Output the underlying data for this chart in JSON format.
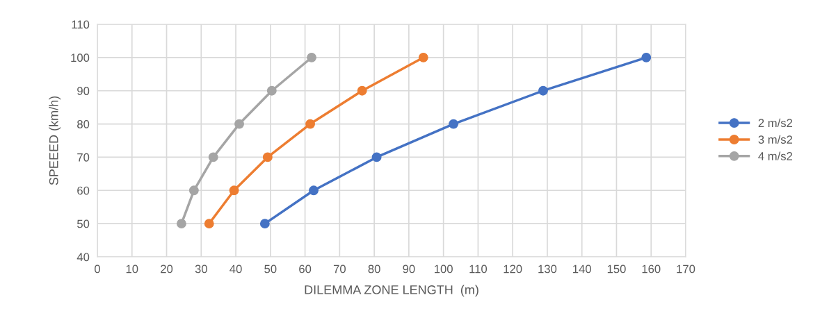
{
  "chart_data": {
    "type": "line",
    "xlabel": "DILEMMA ZONE LENGTH  (m)",
    "ylabel": "SPEEED (km/h)",
    "xlim": [
      0,
      170
    ],
    "xticks": [
      0,
      10,
      20,
      30,
      40,
      50,
      60,
      70,
      80,
      90,
      100,
      110,
      120,
      130,
      140,
      150,
      160,
      170
    ],
    "ylim": [
      40,
      110
    ],
    "yticks": [
      40,
      50,
      60,
      70,
      80,
      90,
      100,
      110
    ],
    "grid": true,
    "legend": "right",
    "marker": "circle",
    "line_style": "solid",
    "series": [
      {
        "name": "2 m/s2",
        "color": "#4472c4",
        "x": [
          48.4,
          62.5,
          80.7,
          102.9,
          128.8,
          158.6
        ],
        "values": [
          50,
          60,
          70,
          80,
          90,
          100
        ]
      },
      {
        "name": "3 m/s2",
        "color": "#ed7d31",
        "x": [
          32.3,
          39.5,
          49.2,
          61.5,
          76.5,
          94.2
        ],
        "values": [
          50,
          60,
          70,
          80,
          90,
          100
        ]
      },
      {
        "name": "4 m/s2",
        "color": "#a5a5a5",
        "x": [
          24.3,
          27.9,
          33.5,
          41.0,
          50.4,
          61.9
        ],
        "values": [
          50,
          60,
          70,
          80,
          90,
          100
        ]
      }
    ]
  }
}
